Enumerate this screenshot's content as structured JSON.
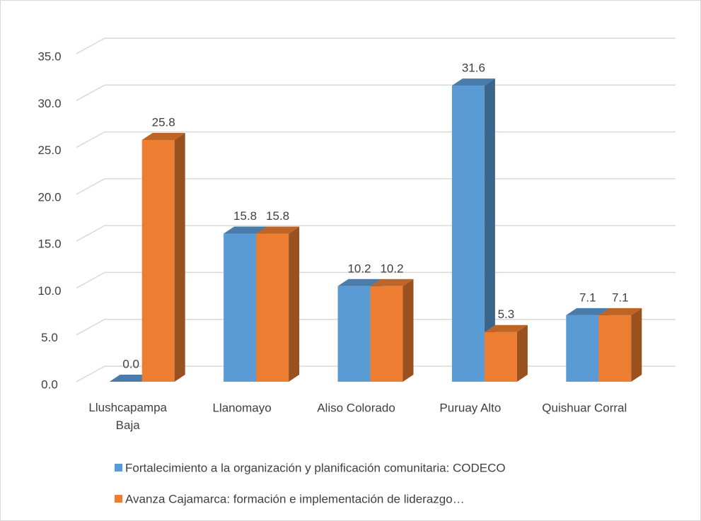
{
  "chart_data": {
    "type": "bar3d",
    "categories": [
      "Llushcapampa Baja",
      "Llanomayo",
      "Aliso Colorado",
      "Puruay Alto",
      "Quishuar Corral"
    ],
    "series": [
      {
        "name": "Fortalecimiento a la organización y planificación comunitaria: CODECO",
        "color": "#5b9bd5",
        "values": [
          0,
          15.8,
          10.2,
          31.6,
          7.1
        ],
        "value_labels": [
          "0.0",
          "15.8",
          "10.2",
          "31.6",
          "7.1"
        ]
      },
      {
        "name": "Avanza Cajamarca: formación e implementación de liderazgo…",
        "color": "#ed7d31",
        "values": [
          25.8,
          15.8,
          10.2,
          5.3,
          7.1
        ],
        "value_labels": [
          "25.8",
          "15.8",
          "10.2",
          "5.3",
          "7.1"
        ]
      }
    ],
    "ylim": [
      0,
      35
    ],
    "yticks": [
      {
        "value": 0,
        "label": "0.0"
      },
      {
        "value": 5,
        "label": "5.0"
      },
      {
        "value": 10,
        "label": "10.0"
      },
      {
        "value": 15,
        "label": "15.0"
      },
      {
        "value": 20,
        "label": "20.0"
      },
      {
        "value": 25,
        "label": "25.0"
      },
      {
        "value": 30,
        "label": "30.0"
      },
      {
        "value": 35,
        "label": "35.0"
      }
    ],
    "grid": true,
    "legend": "bottom"
  }
}
